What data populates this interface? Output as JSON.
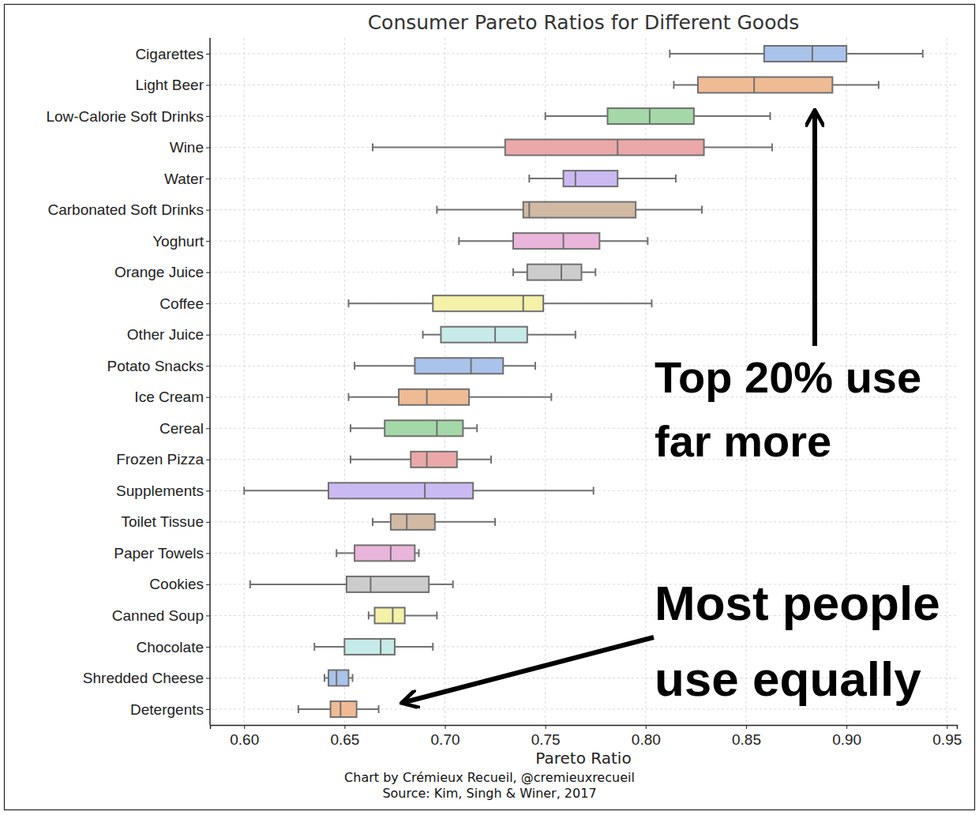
{
  "chart_data": {
    "type": "box",
    "orientation": "horizontal",
    "title": "Consumer Pareto Ratios for Different Goods",
    "x_label": "Pareto Ratio",
    "categories": [
      "Cigarettes",
      "Light Beer",
      "Low-Calorie Soft Drinks",
      "Wine",
      "Water",
      "Carbonated Soft Drinks",
      "Yoghurt",
      "Orange Juice",
      "Coffee",
      "Other Juice",
      "Potato Snacks",
      "Ice Cream",
      "Cereal",
      "Frozen Pizza",
      "Supplements",
      "Toilet Tissue",
      "Paper Towels",
      "Cookies",
      "Canned Soup",
      "Chocolate ",
      "Shredded Cheese",
      "Detergents"
    ],
    "whisker_low": [
      0.812,
      0.814,
      0.75,
      0.664,
      0.742,
      0.696,
      0.707,
      0.734,
      0.652,
      0.689,
      0.655,
      0.652,
      0.653,
      0.653,
      0.6,
      0.664,
      0.646,
      0.603,
      0.662,
      0.635,
      0.64,
      0.627
    ],
    "q1": [
      0.859,
      0.826,
      0.781,
      0.73,
      0.759,
      0.739,
      0.734,
      0.741,
      0.694,
      0.698,
      0.685,
      0.677,
      0.67,
      0.683,
      0.642,
      0.673,
      0.655,
      0.651,
      0.665,
      0.65,
      0.642,
      0.643
    ],
    "median": [
      0.883,
      0.854,
      0.802,
      0.786,
      0.765,
      0.742,
      0.759,
      0.758,
      0.739,
      0.725,
      0.713,
      0.691,
      0.696,
      0.691,
      0.69,
      0.681,
      0.673,
      0.663,
      0.674,
      0.668,
      0.646,
      0.648
    ],
    "q3": [
      0.9,
      0.893,
      0.824,
      0.829,
      0.786,
      0.795,
      0.777,
      0.768,
      0.749,
      0.741,
      0.729,
      0.712,
      0.709,
      0.706,
      0.714,
      0.695,
      0.685,
      0.692,
      0.68,
      0.675,
      0.652,
      0.656
    ],
    "whisker_high": [
      0.938,
      0.916,
      0.862,
      0.863,
      0.815,
      0.828,
      0.801,
      0.775,
      0.803,
      0.765,
      0.745,
      0.753,
      0.716,
      0.723,
      0.774,
      0.725,
      0.687,
      0.704,
      0.696,
      0.694,
      0.654,
      0.667
    ],
    "colors": [
      "#a9c3ea",
      "#efbb94",
      "#a4d8a8",
      "#eaa9a8",
      "#cbb9f2",
      "#d2b9a3",
      "#eab5db",
      "#cccccc",
      "#f4f1a9",
      "#c6eae7",
      "#a9c3ea",
      "#efbb94",
      "#a4d8a8",
      "#eaa9a8",
      "#cbb9f2",
      "#d2b9a3",
      "#eab5db",
      "#cccccc",
      "#f4f1a9",
      "#c6eae7",
      "#a9c3ea",
      "#efbb94"
    ],
    "xlim": [
      0.583,
      0.955
    ],
    "xticks": [
      {
        "value": 0.6,
        "label": "0.60"
      },
      {
        "value": 0.65,
        "label": "0.65"
      },
      {
        "value": 0.7,
        "label": "0.70"
      },
      {
        "value": 0.75,
        "label": "0.75"
      },
      {
        "value": 0.8,
        "label": "0.80"
      },
      {
        "value": 0.85,
        "label": "0.85"
      },
      {
        "value": 0.9,
        "label": "0.90"
      },
      {
        "value": 0.95,
        "label": "0.95"
      }
    ],
    "grid": true,
    "annotations": [
      {
        "lines": [
          "Top 20% use",
          "far more"
        ]
      },
      {
        "lines": [
          "Most people",
          "use equally"
        ]
      }
    ],
    "credits": [
      "Chart by Crémieux Recueil, @cremieuxrecueil",
      "Source: Kim, Singh & Winer, 2017"
    ]
  }
}
